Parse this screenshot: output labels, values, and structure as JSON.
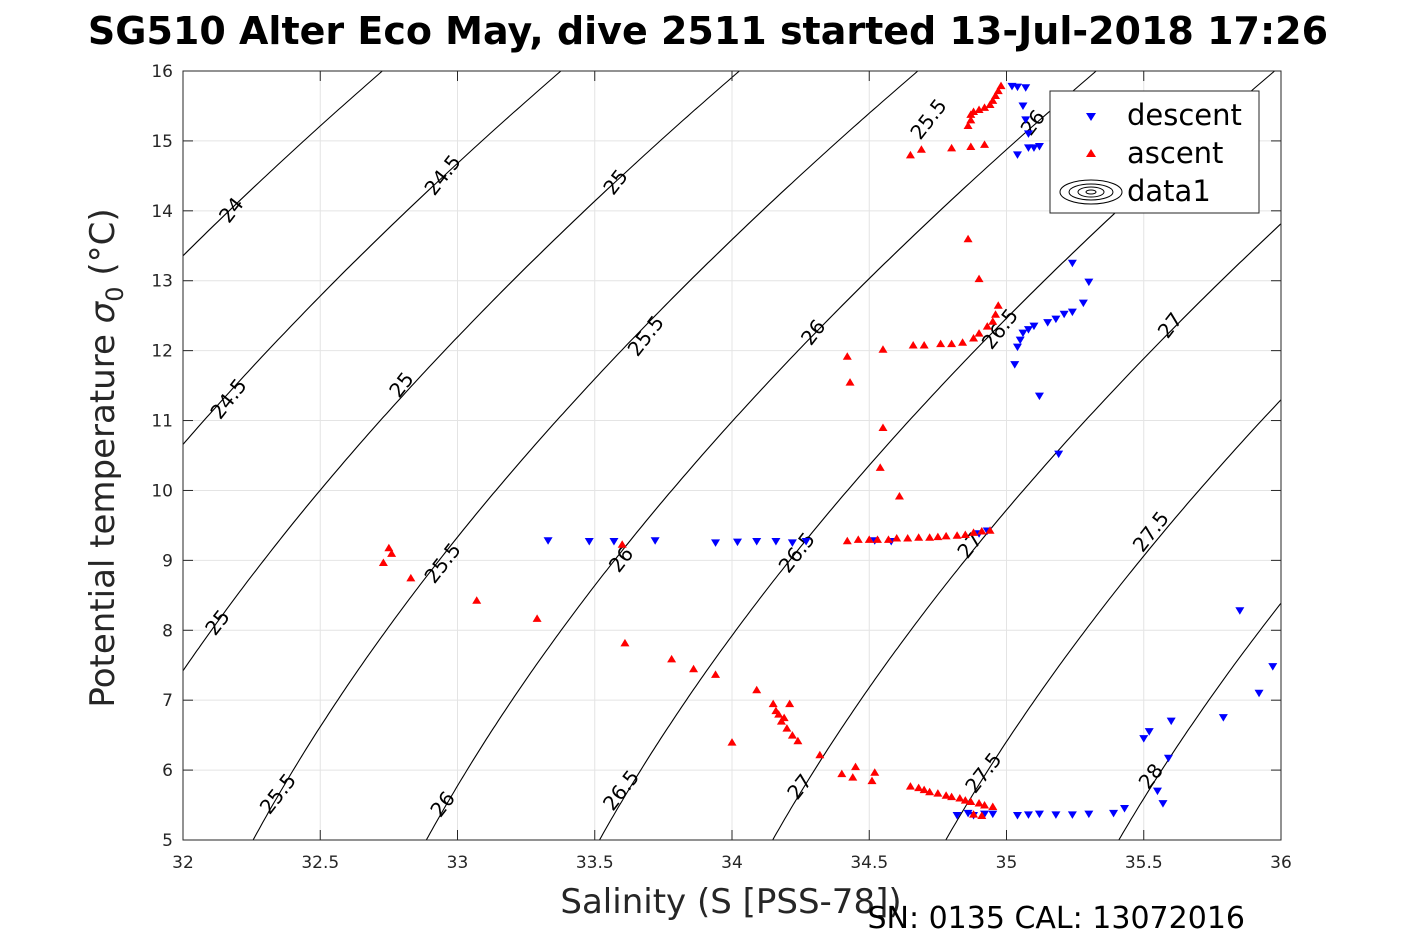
{
  "title": "SG510 Alter Eco May, dive 2511 started 13-Jul-2018 17:26",
  "footer": "SN: 0135  CAL: 13072016",
  "chart_data": {
    "type": "scatter",
    "xlabel": "Salinity (S [PSS-78])",
    "ylabel_main": "Potential temperature ",
    "ylabel_sigma": "σ",
    "ylabel_sub": "0",
    "ylabel_unit": " (°C)",
    "xlim": [
      32,
      36
    ],
    "ylim": [
      5,
      16
    ],
    "grid": true,
    "x_ticks": [
      32,
      32.5,
      33,
      33.5,
      34,
      34.5,
      35,
      35.5,
      36
    ],
    "x_tick_labels": [
      "32",
      "32.5",
      "33",
      "33.5",
      "34",
      "34.5",
      "35",
      "35.5",
      "36"
    ],
    "y_ticks": [
      5,
      6,
      7,
      8,
      9,
      10,
      11,
      12,
      13,
      14,
      15,
      16
    ],
    "y_tick_labels": [
      "5",
      "6",
      "7",
      "8",
      "9",
      "10",
      "11",
      "12",
      "13",
      "14",
      "15",
      "16"
    ],
    "legend_position": "top-right",
    "legend": [
      {
        "name": "descent",
        "marker": "triangle-down",
        "color": "#0000ff"
      },
      {
        "name": "ascent",
        "marker": "triangle-up",
        "color": "#ff0000"
      },
      {
        "name": "data1",
        "marker": "contour",
        "color": "#000000"
      }
    ],
    "contours": {
      "levels": [
        24,
        24.5,
        25,
        25.5,
        26,
        26.5,
        27,
        27.5,
        28
      ],
      "labels": [
        {
          "text": "24",
          "s": 32.18,
          "t": 14.0
        },
        {
          "text": "24.5",
          "s": 32.17,
          "t": 11.3
        },
        {
          "text": "25",
          "s": 32.13,
          "t": 8.1
        },
        {
          "text": "25.5",
          "s": 32.35,
          "t": 5.65
        },
        {
          "text": "24.5",
          "s": 32.95,
          "t": 14.5
        },
        {
          "text": "25",
          "s": 32.8,
          "t": 11.5
        },
        {
          "text": "25.5",
          "s": 32.95,
          "t": 8.95
        },
        {
          "text": "26",
          "s": 32.95,
          "t": 5.5
        },
        {
          "text": "25",
          "s": 33.58,
          "t": 14.4
        },
        {
          "text": "25.5",
          "s": 33.69,
          "t": 12.2
        },
        {
          "text": "26",
          "s": 33.6,
          "t": 9.0
        },
        {
          "text": "26.5",
          "s": 33.6,
          "t": 5.7
        },
        {
          "text": "26",
          "s": 34.3,
          "t": 12.25
        },
        {
          "text": "26.5",
          "s": 34.24,
          "t": 9.1
        },
        {
          "text": "27",
          "s": 34.25,
          "t": 5.75
        },
        {
          "text": "25.5",
          "s": 34.72,
          "t": 15.3
        },
        {
          "text": "26.5",
          "s": 34.98,
          "t": 12.3
        },
        {
          "text": "27",
          "s": 34.87,
          "t": 9.2
        },
        {
          "text": "27.5",
          "s": 34.92,
          "t": 5.95
        },
        {
          "text": "26",
          "s": 35.1,
          "t": 15.25
        },
        {
          "text": "27",
          "s": 35.6,
          "t": 12.35
        },
        {
          "text": "27.5",
          "s": 35.53,
          "t": 9.4
        },
        {
          "text": "28",
          "s": 35.53,
          "t": 5.9
        }
      ]
    },
    "series": [
      {
        "name": "descent",
        "marker": "triangle-down",
        "color": "#0000ff",
        "points": [
          [
            35.02,
            15.78
          ],
          [
            35.04,
            15.77
          ],
          [
            35.07,
            15.76
          ],
          [
            35.06,
            15.5
          ],
          [
            35.07,
            15.3
          ],
          [
            35.08,
            15.1
          ],
          [
            35.08,
            14.9
          ],
          [
            35.1,
            14.9
          ],
          [
            35.12,
            14.92
          ],
          [
            35.04,
            14.8
          ],
          [
            35.24,
            13.25
          ],
          [
            35.3,
            12.98
          ],
          [
            35.28,
            12.68
          ],
          [
            35.24,
            12.55
          ],
          [
            35.21,
            12.52
          ],
          [
            35.18,
            12.45
          ],
          [
            35.15,
            12.4
          ],
          [
            35.1,
            12.35
          ],
          [
            35.08,
            12.3
          ],
          [
            35.06,
            12.25
          ],
          [
            35.05,
            12.15
          ],
          [
            35.04,
            12.05
          ],
          [
            35.03,
            11.8
          ],
          [
            35.12,
            11.35
          ],
          [
            35.19,
            10.52
          ],
          [
            33.33,
            9.28
          ],
          [
            33.48,
            9.27
          ],
          [
            33.57,
            9.27
          ],
          [
            33.72,
            9.28
          ],
          [
            33.94,
            9.25
          ],
          [
            34.02,
            9.26
          ],
          [
            34.09,
            9.27
          ],
          [
            34.16,
            9.27
          ],
          [
            34.22,
            9.25
          ],
          [
            34.27,
            9.27
          ],
          [
            34.52,
            9.28
          ],
          [
            34.58,
            9.27
          ],
          [
            34.9,
            9.38
          ],
          [
            34.93,
            9.42
          ],
          [
            34.82,
            5.35
          ],
          [
            34.86,
            5.38
          ],
          [
            34.88,
            5.35
          ],
          [
            34.92,
            5.37
          ],
          [
            34.95,
            5.37
          ],
          [
            35.04,
            5.35
          ],
          [
            35.08,
            5.36
          ],
          [
            35.12,
            5.37
          ],
          [
            35.18,
            5.36
          ],
          [
            35.24,
            5.36
          ],
          [
            35.3,
            5.37
          ],
          [
            35.39,
            5.38
          ],
          [
            35.43,
            5.45
          ],
          [
            35.5,
            6.45
          ],
          [
            35.52,
            6.55
          ],
          [
            35.55,
            5.7
          ],
          [
            35.57,
            5.52
          ],
          [
            35.59,
            6.17
          ],
          [
            35.6,
            6.7
          ],
          [
            35.79,
            6.75
          ],
          [
            35.85,
            8.28
          ],
          [
            35.92,
            7.1
          ],
          [
            35.97,
            7.48
          ]
        ]
      },
      {
        "name": "ascent",
        "marker": "triangle-up",
        "color": "#ff0000",
        "points": [
          [
            34.98,
            15.79
          ],
          [
            34.97,
            15.72
          ],
          [
            34.96,
            15.65
          ],
          [
            34.95,
            15.58
          ],
          [
            34.94,
            15.52
          ],
          [
            34.92,
            15.48
          ],
          [
            34.9,
            15.45
          ],
          [
            34.88,
            15.42
          ],
          [
            34.87,
            15.38
          ],
          [
            34.87,
            15.3
          ],
          [
            34.86,
            15.22
          ],
          [
            34.87,
            14.92
          ],
          [
            34.8,
            14.9
          ],
          [
            34.69,
            14.88
          ],
          [
            34.65,
            14.8
          ],
          [
            34.92,
            14.95
          ],
          [
            34.86,
            13.6
          ],
          [
            34.9,
            13.03
          ],
          [
            34.97,
            12.65
          ],
          [
            34.96,
            12.52
          ],
          [
            34.95,
            12.42
          ],
          [
            34.93,
            12.35
          ],
          [
            34.9,
            12.25
          ],
          [
            34.88,
            12.18
          ],
          [
            34.84,
            12.12
          ],
          [
            34.8,
            12.1
          ],
          [
            34.76,
            12.1
          ],
          [
            34.7,
            12.08
          ],
          [
            34.66,
            12.08
          ],
          [
            34.55,
            12.02
          ],
          [
            34.42,
            11.92
          ],
          [
            34.43,
            11.55
          ],
          [
            34.55,
            10.9
          ],
          [
            34.54,
            10.33
          ],
          [
            34.61,
            9.92
          ],
          [
            34.42,
            9.28
          ],
          [
            34.46,
            9.3
          ],
          [
            34.5,
            9.3
          ],
          [
            34.53,
            9.3
          ],
          [
            34.57,
            9.3
          ],
          [
            34.6,
            9.32
          ],
          [
            34.64,
            9.32
          ],
          [
            34.68,
            9.33
          ],
          [
            34.72,
            9.33
          ],
          [
            34.75,
            9.34
          ],
          [
            34.78,
            9.35
          ],
          [
            34.82,
            9.36
          ],
          [
            34.85,
            9.37
          ],
          [
            34.88,
            9.4
          ],
          [
            34.91,
            9.42
          ],
          [
            34.94,
            9.43
          ],
          [
            32.73,
            8.97
          ],
          [
            32.75,
            9.18
          ],
          [
            32.76,
            9.1
          ],
          [
            32.83,
            8.75
          ],
          [
            33.07,
            8.43
          ],
          [
            33.29,
            8.17
          ],
          [
            33.6,
            9.23
          ],
          [
            33.61,
            7.82
          ],
          [
            33.78,
            7.59
          ],
          [
            33.86,
            7.45
          ],
          [
            33.94,
            7.37
          ],
          [
            34.0,
            6.4
          ],
          [
            34.09,
            7.15
          ],
          [
            34.15,
            6.95
          ],
          [
            34.16,
            6.85
          ],
          [
            34.17,
            6.8
          ],
          [
            34.18,
            6.7
          ],
          [
            34.19,
            6.75
          ],
          [
            34.2,
            6.6
          ],
          [
            34.21,
            6.95
          ],
          [
            34.22,
            6.5
          ],
          [
            34.24,
            6.42
          ],
          [
            34.32,
            6.22
          ],
          [
            34.4,
            5.95
          ],
          [
            34.44,
            5.9
          ],
          [
            34.45,
            6.05
          ],
          [
            34.51,
            5.85
          ],
          [
            34.52,
            5.97
          ],
          [
            34.65,
            5.77
          ],
          [
            34.68,
            5.75
          ],
          [
            34.7,
            5.72
          ],
          [
            34.72,
            5.69
          ],
          [
            34.75,
            5.67
          ],
          [
            34.78,
            5.64
          ],
          [
            34.8,
            5.62
          ],
          [
            34.83,
            5.6
          ],
          [
            34.85,
            5.57
          ],
          [
            34.87,
            5.55
          ],
          [
            34.9,
            5.53
          ],
          [
            34.92,
            5.5
          ],
          [
            34.95,
            5.48
          ],
          [
            34.88,
            5.37
          ],
          [
            34.91,
            5.35
          ]
        ]
      }
    ]
  }
}
